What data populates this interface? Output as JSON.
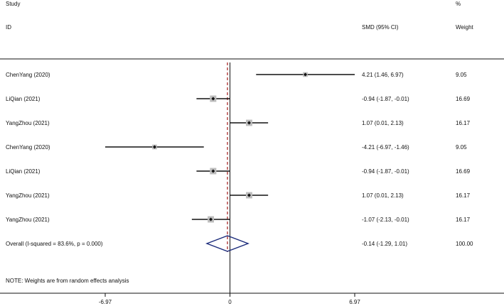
{
  "chart_data": {
    "type": "forest",
    "header": {
      "study_line1": "Study",
      "study_line2": "ID",
      "effect_label": "SMD (95% CI)",
      "weight_line1": "%",
      "weight_line2": "Weight"
    },
    "studies": [
      {
        "label": "ChenYang (2020)",
        "estimate": 4.21,
        "lower": 1.46,
        "upper": 6.97,
        "ci_text": "4.21 (1.46, 6.97)",
        "weight": 9.05,
        "weight_text": "9.05"
      },
      {
        "label": "LiQian (2021)",
        "estimate": -0.94,
        "lower": -1.87,
        "upper": -0.01,
        "ci_text": "-0.94 (-1.87, -0.01)",
        "weight": 16.69,
        "weight_text": "16.69"
      },
      {
        "label": "YangZhou (2021)",
        "estimate": 1.07,
        "lower": 0.01,
        "upper": 2.13,
        "ci_text": "1.07 (0.01, 2.13)",
        "weight": 16.17,
        "weight_text": "16.17"
      },
      {
        "label": "ChenYang (2020)",
        "estimate": -4.21,
        "lower": -6.97,
        "upper": -1.46,
        "ci_text": "-4.21 (-6.97, -1.46)",
        "weight": 9.05,
        "weight_text": "9.05"
      },
      {
        "label": "LiQian (2021)",
        "estimate": -0.94,
        "lower": -1.87,
        "upper": -0.01,
        "ci_text": "-0.94 (-1.87, -0.01)",
        "weight": 16.69,
        "weight_text": "16.69"
      },
      {
        "label": "YangZhou (2021)",
        "estimate": 1.07,
        "lower": 0.01,
        "upper": 2.13,
        "ci_text": "1.07 (0.01, 2.13)",
        "weight": 16.17,
        "weight_text": "16.17"
      },
      {
        "label": "YangZhou (2021)",
        "estimate": -1.07,
        "lower": -2.13,
        "upper": -0.01,
        "ci_text": "-1.07 (-2.13, -0.01)",
        "weight": 16.17,
        "weight_text": "16.17"
      }
    ],
    "overall": {
      "label": "Overall  (I-squared = 83.6%, p = 0.000)",
      "estimate": -0.14,
      "lower": -1.29,
      "upper": 1.01,
      "ci_text": "-0.14 (-1.29, 1.01)",
      "weight_text": "100.00"
    },
    "note": "NOTE: Weights are from random effects analysis",
    "xlim": [
      -6.97,
      6.97
    ],
    "xticks": [
      -6.97,
      0,
      6.97
    ],
    "xtick_labels": [
      "-6.97",
      "0",
      "6.97"
    ],
    "null_line": 0,
    "colors": {
      "ci_line": "#111111",
      "weight_box": "#bdbdbd",
      "point": "#111111",
      "diamond": "#1a2a7a",
      "overall_line": "#a01818"
    }
  }
}
